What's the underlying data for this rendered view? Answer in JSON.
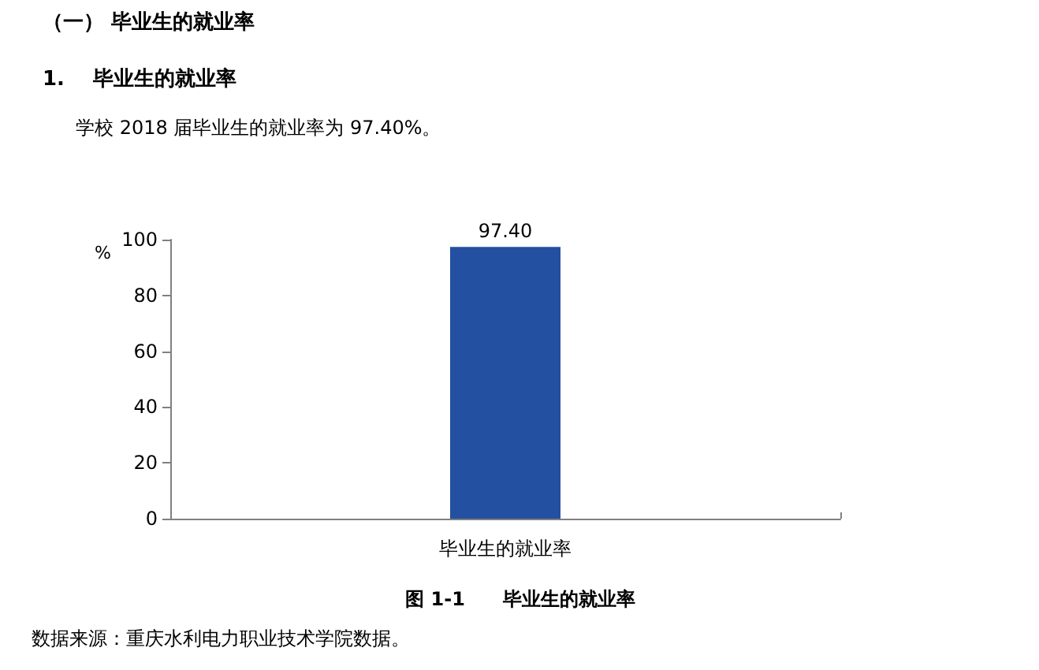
{
  "chart_data": {
    "type": "bar",
    "title": "（一） 毕业生的就业率",
    "subtitle": "1.    毕业生的就业率",
    "ylabel": "%",
    "annotations": [
      "学校 2018 届毕业生的就业率为 97.40%。",
      "图 1-1　　毕业生的就业率",
      "数据来源：重庆水利电力职业技术学院数据。"
    ],
    "categories": [
      "毕业生的就业率"
    ],
    "values": [
      97.4
    ],
    "value_labels": [
      "97.40"
    ],
    "color": "#2350a0",
    "ylim": [
      0,
      100
    ],
    "yticks": [
      0,
      20,
      40,
      60,
      80,
      100
    ]
  }
}
